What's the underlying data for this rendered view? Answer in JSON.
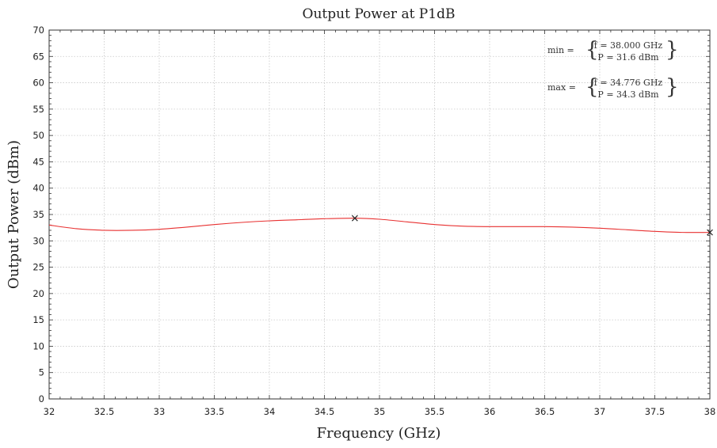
{
  "chart_data": {
    "type": "line",
    "title": "Output Power at P1dB",
    "xlabel": "Frequency (GHz)",
    "ylabel": "Output Power (dBm)",
    "xlim": [
      32,
      38
    ],
    "ylim": [
      0,
      70
    ],
    "x_ticks": [
      32,
      32.5,
      33,
      33.5,
      34,
      34.5,
      35,
      35.5,
      36,
      36.5,
      37,
      37.5,
      38
    ],
    "x_tick_labels": [
      "32",
      "32.5",
      "33",
      "33.5",
      "34",
      "34.5",
      "35",
      "35.5",
      "36",
      "36.5",
      "37",
      "37.5",
      "38"
    ],
    "y_ticks": [
      0,
      5,
      10,
      15,
      20,
      25,
      30,
      35,
      40,
      45,
      50,
      55,
      60,
      65,
      70
    ],
    "y_tick_labels": [
      "0",
      "5",
      "10",
      "15",
      "20",
      "25",
      "30",
      "35",
      "40",
      "45",
      "50",
      "55",
      "60",
      "65",
      "70"
    ],
    "grid": true,
    "line_color": "#e83030",
    "series": [
      {
        "x": [
          32.0,
          32.25,
          32.5,
          32.75,
          33.0,
          33.25,
          33.5,
          33.75,
          34.0,
          34.25,
          34.5,
          34.776,
          35.0,
          35.25,
          35.5,
          35.75,
          36.0,
          36.25,
          36.5,
          36.75,
          37.0,
          37.25,
          37.5,
          37.75,
          38.0
        ],
        "y": [
          33.0,
          32.3,
          32.0,
          32.0,
          32.2,
          32.6,
          33.1,
          33.5,
          33.8,
          34.0,
          34.2,
          34.3,
          34.1,
          33.6,
          33.1,
          32.8,
          32.7,
          32.7,
          32.7,
          32.6,
          32.4,
          32.1,
          31.8,
          31.6,
          31.6
        ]
      }
    ],
    "markers": [
      {
        "name": "max",
        "x": 34.776,
        "y": 34.3,
        "symbol": "x"
      },
      {
        "name": "min",
        "x": 38.0,
        "y": 31.6,
        "symbol": "x"
      }
    ],
    "annotations": {
      "min": {
        "label": "min =",
        "f_line": "f = 38.000 GHz",
        "p_line": "P = 31.6 dBm"
      },
      "max": {
        "label": "max =",
        "f_line": "f = 34.776 GHz",
        "p_line": "P = 34.3 dBm"
      }
    }
  }
}
